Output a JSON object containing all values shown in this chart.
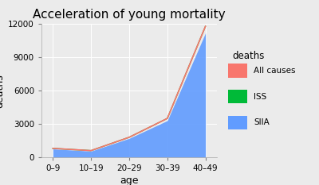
{
  "title": "Acceleration of young mortality",
  "xlabel": "age",
  "ylabel": "deaths",
  "legend_title": "deaths",
  "categories": [
    "0–9",
    "10–19",
    "20–29",
    "30–39",
    "40–49"
  ],
  "all_causes": [
    800,
    600,
    1800,
    3500,
    11800
  ],
  "iss": [
    800,
    600,
    1800,
    3500,
    11800
  ],
  "siia": [
    750,
    550,
    1700,
    3300,
    11200
  ],
  "color_all_causes": "#F8766D",
  "color_iss": "#00BA38",
  "color_siia": "#619CFF",
  "background_color": "#EBEBEB",
  "panel_color": "#EBEBEB",
  "ylim": [
    0,
    12000
  ],
  "yticks": [
    0,
    3000,
    6000,
    9000,
    12000
  ],
  "title_fontsize": 11,
  "axis_label_fontsize": 9,
  "tick_fontsize": 7.5
}
